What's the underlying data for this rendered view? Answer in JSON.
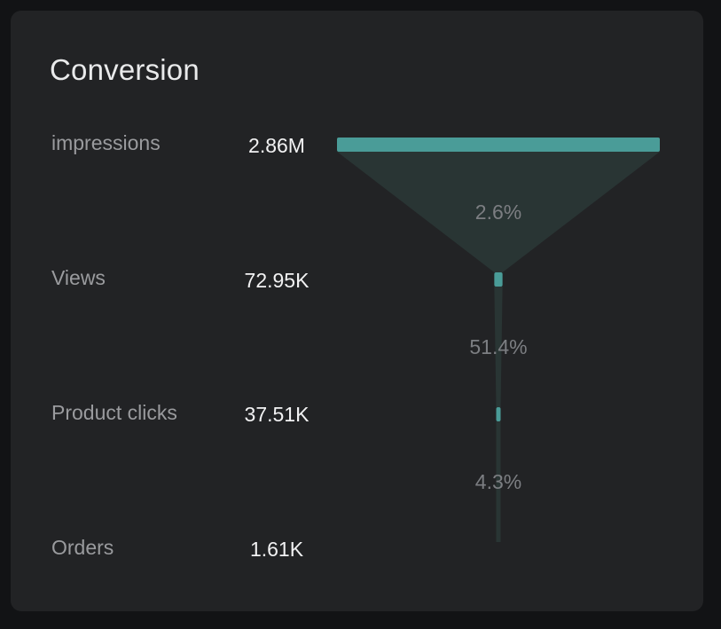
{
  "card": {
    "title": "Conversion"
  },
  "chart_data": {
    "type": "funnel",
    "title": "Conversion",
    "stages": [
      {
        "label": "impressions",
        "value": 2860000,
        "display": "2.86M"
      },
      {
        "label": "Views",
        "value": 72950,
        "display": "72.95K"
      },
      {
        "label": "Product clicks",
        "value": 37510,
        "display": "37.51K"
      },
      {
        "label": "Orders",
        "value": 1610,
        "display": "1.61K"
      }
    ],
    "conversion_rates": [
      "2.6%",
      "51.4%",
      "4.3%"
    ],
    "colors": {
      "bar": "#4a9c98",
      "connector": "#293534",
      "background": "#222325"
    }
  }
}
